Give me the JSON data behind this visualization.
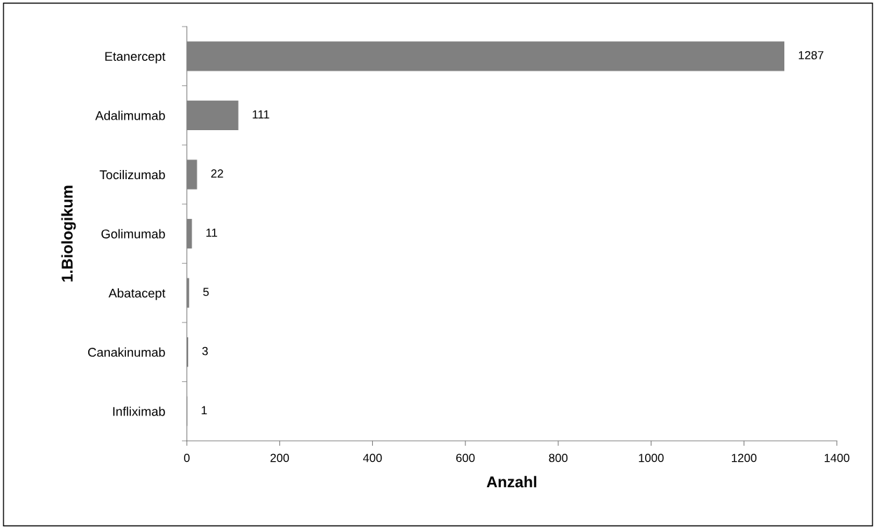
{
  "chart_data": {
    "type": "bar",
    "orientation": "horizontal",
    "xlabel": "Anzahl",
    "ylabel": "1.Biologikum",
    "categories": [
      "Etanercept",
      "Adalimumab",
      "Tocilizumab",
      "Golimumab",
      "Abatacept",
      "Canakinumab",
      "Infliximab"
    ],
    "values": [
      1287,
      111,
      22,
      11,
      5,
      3,
      1
    ],
    "color": "#808080",
    "data_labels": true,
    "xlim": [
      0,
      1400
    ],
    "xticks": [
      0,
      200,
      400,
      600,
      800,
      1000,
      1200,
      1400
    ],
    "grid": false,
    "legend": false
  }
}
